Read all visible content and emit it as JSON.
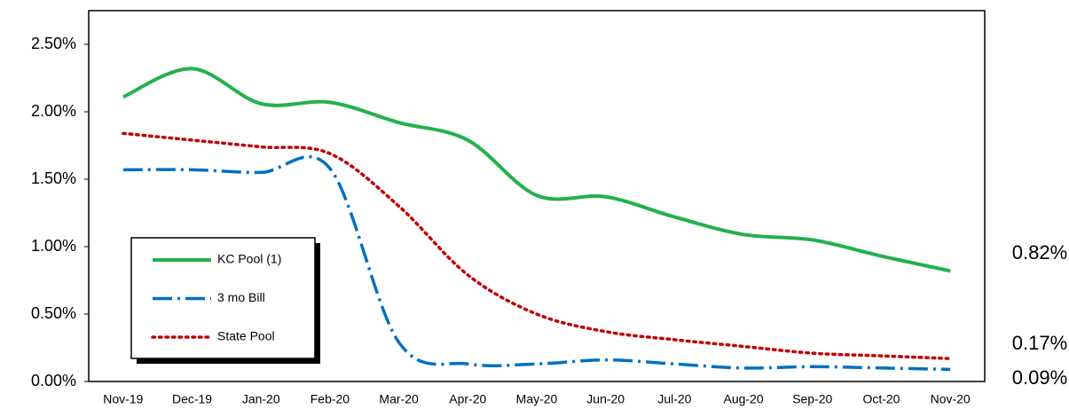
{
  "chart_data": {
    "type": "line",
    "categories": [
      "Nov-19",
      "Dec-19",
      "Jan-20",
      "Feb-20",
      "Mar-20",
      "Apr-20",
      "May-20",
      "Jun-20",
      "Jul-20",
      "Aug-20",
      "Sep-20",
      "Oct-20",
      "Nov-20"
    ],
    "series": [
      {
        "name": "KC Pool (1)",
        "color": "#22b14c",
        "style": "solid",
        "values": [
          2.11,
          2.32,
          2.06,
          2.07,
          1.92,
          1.79,
          1.38,
          1.37,
          1.22,
          1.09,
          1.05,
          0.93,
          0.82
        ],
        "value_labels": [
          null,
          null,
          null,
          null,
          null,
          null,
          null,
          null,
          null,
          null,
          null,
          null,
          "0.82%"
        ]
      },
      {
        "name": "3 mo Bill",
        "color": "#0070c0",
        "style": "dashdot",
        "values": [
          1.57,
          1.57,
          1.55,
          1.58,
          0.29,
          0.13,
          0.13,
          0.16,
          0.13,
          0.1,
          0.11,
          0.1,
          0.09
        ],
        "value_labels": [
          null,
          null,
          null,
          null,
          null,
          null,
          null,
          null,
          null,
          null,
          null,
          null,
          "0.09%"
        ]
      },
      {
        "name": "State Pool",
        "color": "#c00000",
        "style": "dotted",
        "values": [
          1.84,
          1.79,
          1.74,
          1.69,
          1.3,
          0.79,
          0.5,
          0.37,
          0.31,
          0.26,
          0.21,
          0.19,
          0.17
        ],
        "value_labels": [
          null,
          null,
          null,
          null,
          null,
          null,
          null,
          null,
          null,
          null,
          null,
          null,
          "0.17%"
        ]
      }
    ],
    "ylim": [
      0,
      2.75
    ],
    "yticks": [
      {
        "value": 0,
        "label": "0.00%"
      },
      {
        "value": 0.5,
        "label": "0.50%"
      },
      {
        "value": 1,
        "label": "1.00%"
      },
      {
        "value": 1.5,
        "label": "1.50%"
      },
      {
        "value": 2,
        "label": "2.00%"
      },
      {
        "value": 2.5,
        "label": "2.50%"
      }
    ]
  }
}
